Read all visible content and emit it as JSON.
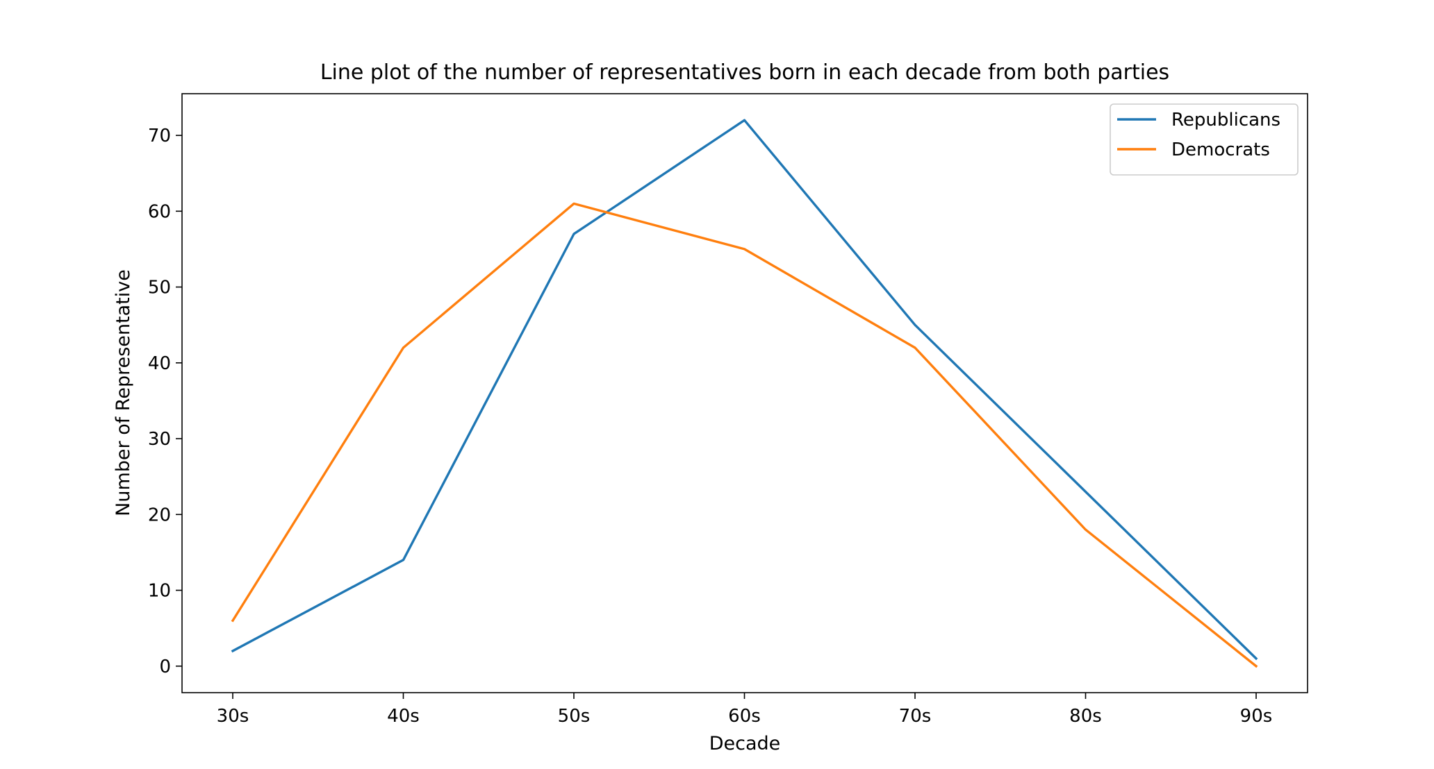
{
  "chart_data": {
    "type": "line",
    "title": "Line plot of the number of representatives born in each decade from both parties",
    "xlabel": "Decade",
    "ylabel": "Number of Representative",
    "categories": [
      "30s",
      "40s",
      "50s",
      "60s",
      "70s",
      "80s",
      "90s"
    ],
    "ylim": [
      -3.5,
      75.5
    ],
    "yticks": [
      0,
      10,
      20,
      30,
      40,
      50,
      60,
      70
    ],
    "grid": false,
    "legend_position": "top-right",
    "series": [
      {
        "name": "Republicans",
        "color": "#1f77b4",
        "values": [
          2,
          14,
          57,
          72,
          45,
          23,
          1
        ]
      },
      {
        "name": "Democrats",
        "color": "#ff7f0e",
        "values": [
          6,
          42,
          61,
          55,
          42,
          18,
          0
        ]
      }
    ]
  }
}
